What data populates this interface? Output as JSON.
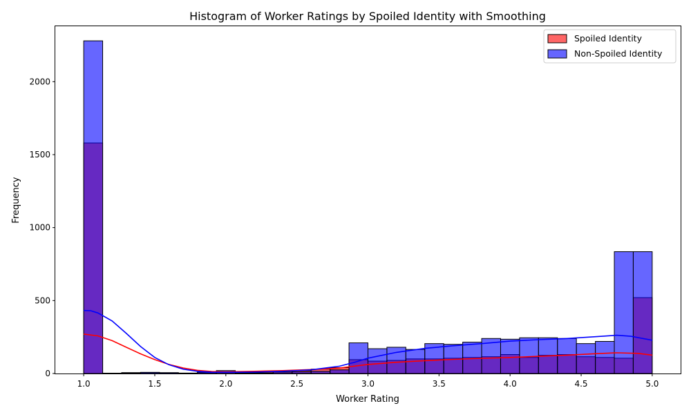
{
  "chart_data": {
    "type": "bar",
    "title": "Histogram of Worker Ratings by Spoiled Identity with Smoothing",
    "xlabel": "Worker Rating",
    "ylabel": "Frequency",
    "xlim": [
      0.8,
      5.2
    ],
    "ylim": [
      0,
      2380
    ],
    "xticks": [
      "1.0",
      "1.5",
      "2.0",
      "2.5",
      "3.0",
      "3.5",
      "4.0",
      "4.5",
      "5.0"
    ],
    "yticks": [
      "0",
      "500",
      "1000",
      "1500",
      "2000"
    ],
    "grid": false,
    "legend_position": "top-right",
    "bin_range": [
      1.0,
      5.0
    ],
    "bins": 30,
    "series": [
      {
        "name": "Spoiled Identity",
        "color": "#ff0000",
        "fill_alpha": 0.6,
        "counts": [
          1580,
          2,
          6,
          5,
          4,
          2,
          6,
          8,
          10,
          12,
          16,
          20,
          30,
          40,
          95,
          85,
          90,
          100,
          100,
          105,
          110,
          115,
          130,
          110,
          125,
          130,
          115,
          110,
          105,
          520
        ],
        "kde": [
          [
            1.0,
            270
          ],
          [
            1.1,
            258
          ],
          [
            1.2,
            225
          ],
          [
            1.3,
            180
          ],
          [
            1.4,
            135
          ],
          [
            1.5,
            95
          ],
          [
            1.6,
            62
          ],
          [
            1.7,
            38
          ],
          [
            1.8,
            22
          ],
          [
            1.9,
            14
          ],
          [
            2.0,
            12
          ],
          [
            2.2,
            15
          ],
          [
            2.4,
            20
          ],
          [
            2.6,
            27
          ],
          [
            2.8,
            38
          ],
          [
            3.0,
            62
          ],
          [
            3.2,
            77
          ],
          [
            3.4,
            88
          ],
          [
            3.6,
            97
          ],
          [
            3.8,
            104
          ],
          [
            4.0,
            110
          ],
          [
            4.2,
            118
          ],
          [
            4.4,
            126
          ],
          [
            4.6,
            136
          ],
          [
            4.75,
            142
          ],
          [
            4.9,
            138
          ],
          [
            5.0,
            126
          ]
        ]
      },
      {
        "name": "Non-Spoiled Identity",
        "color": "#0000ff",
        "fill_alpha": 0.6,
        "counts": [
          2280,
          2,
          5,
          8,
          6,
          3,
          10,
          20,
          5,
          5,
          10,
          12,
          15,
          25,
          210,
          170,
          180,
          165,
          205,
          200,
          215,
          240,
          235,
          245,
          245,
          240,
          205,
          220,
          835,
          835
        ],
        "kde": [
          [
            1.0,
            432
          ],
          [
            1.05,
            430
          ],
          [
            1.1,
            415
          ],
          [
            1.2,
            360
          ],
          [
            1.3,
            275
          ],
          [
            1.4,
            185
          ],
          [
            1.5,
            110
          ],
          [
            1.6,
            60
          ],
          [
            1.7,
            30
          ],
          [
            1.8,
            15
          ],
          [
            1.9,
            9
          ],
          [
            2.0,
            8
          ],
          [
            2.2,
            10
          ],
          [
            2.4,
            15
          ],
          [
            2.6,
            25
          ],
          [
            2.8,
            50
          ],
          [
            2.9,
            75
          ],
          [
            3.0,
            105
          ],
          [
            3.2,
            145
          ],
          [
            3.4,
            172
          ],
          [
            3.6,
            190
          ],
          [
            3.8,
            205
          ],
          [
            4.0,
            222
          ],
          [
            4.2,
            232
          ],
          [
            4.4,
            240
          ],
          [
            4.6,
            252
          ],
          [
            4.75,
            262
          ],
          [
            4.85,
            255
          ],
          [
            5.0,
            228
          ]
        ]
      }
    ]
  }
}
